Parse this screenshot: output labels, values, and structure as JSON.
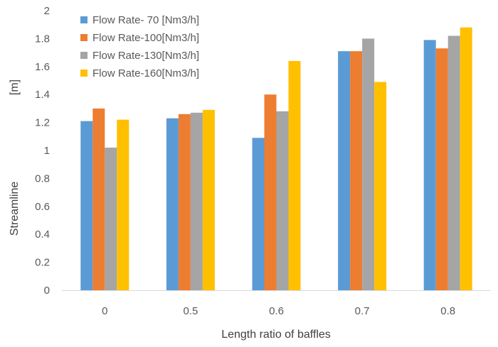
{
  "chart_data": {
    "type": "bar",
    "xlabel": "Length ratio of baffles",
    "ylabel": "Streamline",
    "yunit": "[m]",
    "ylim": [
      0,
      2
    ],
    "ytick_step": 0.2,
    "grid": false,
    "legend_position": "top-left",
    "categories": [
      "0",
      "0.5",
      "0.6",
      "0.7",
      "0.8"
    ],
    "series": [
      {
        "name": "Flow Rate- 70 [Nm3/h]",
        "color": "#5B9BD5",
        "values": [
          1.21,
          1.23,
          1.09,
          1.71,
          1.79
        ]
      },
      {
        "name": "Flow Rate-100[Nm3/h]",
        "color": "#ED7D31",
        "values": [
          1.3,
          1.26,
          1.4,
          1.71,
          1.73
        ]
      },
      {
        "name": "Flow Rate-130[Nm3/h]",
        "color": "#A5A5A5",
        "values": [
          1.02,
          1.27,
          1.28,
          1.8,
          1.82
        ]
      },
      {
        "name": "Flow Rate-160[Nm3/h]",
        "color": "#FFC000",
        "values": [
          1.22,
          1.29,
          1.64,
          1.49,
          1.88
        ]
      }
    ]
  }
}
